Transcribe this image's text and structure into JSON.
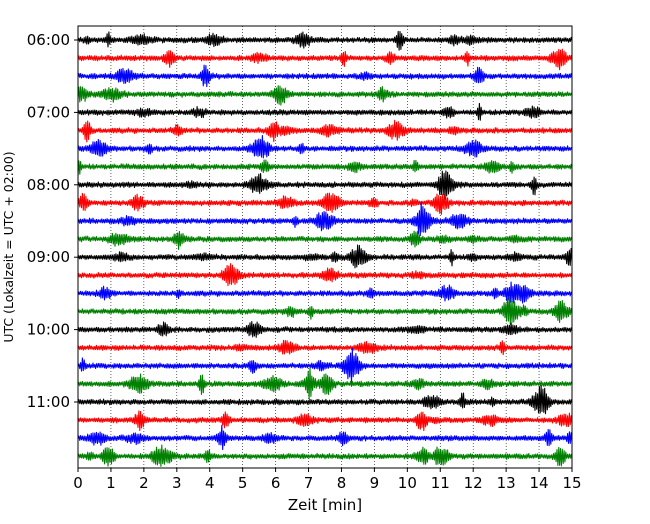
{
  "chart_data": {
    "type": "line",
    "title": "",
    "xlabel": "Zeit  [min]",
    "ylabel": "UTC (Lokalzeit = UTC + 02:00)",
    "xlim": [
      0,
      15
    ],
    "x_ticks": [
      0,
      1,
      2,
      3,
      4,
      5,
      6,
      7,
      8,
      9,
      10,
      11,
      12,
      13,
      14,
      15
    ],
    "x_tick_labels": [
      "0",
      "1",
      "2",
      "3",
      "4",
      "5",
      "6",
      "7",
      "8",
      "9",
      "10",
      "11",
      "12",
      "13",
      "14",
      "15"
    ],
    "y_tick_labels": [
      "06:00",
      "07:00",
      "08:00",
      "09:00",
      "10:00",
      "11:00"
    ],
    "trace_minutes_per_row": 15,
    "grid": "vertical dotted lines at each minute",
    "color_cycle": [
      "#000000",
      "#ff0000",
      "#0000ff",
      "#008000"
    ],
    "series": [
      {
        "start": "06:00",
        "color": "#000000"
      },
      {
        "start": "06:15",
        "color": "#ff0000"
      },
      {
        "start": "06:30",
        "color": "#0000ff"
      },
      {
        "start": "06:45",
        "color": "#008000"
      },
      {
        "start": "07:00",
        "color": "#000000"
      },
      {
        "start": "07:15",
        "color": "#ff0000"
      },
      {
        "start": "07:30",
        "color": "#0000ff"
      },
      {
        "start": "07:45",
        "color": "#008000"
      },
      {
        "start": "08:00",
        "color": "#000000"
      },
      {
        "start": "08:15",
        "color": "#ff0000"
      },
      {
        "start": "08:30",
        "color": "#0000ff"
      },
      {
        "start": "08:45",
        "color": "#008000"
      },
      {
        "start": "09:00",
        "color": "#000000"
      },
      {
        "start": "09:15",
        "color": "#ff0000"
      },
      {
        "start": "09:30",
        "color": "#0000ff"
      },
      {
        "start": "09:45",
        "color": "#008000"
      },
      {
        "start": "10:00",
        "color": "#000000"
      },
      {
        "start": "10:15",
        "color": "#ff0000"
      },
      {
        "start": "10:30",
        "color": "#0000ff"
      },
      {
        "start": "10:45",
        "color": "#008000"
      },
      {
        "start": "11:00",
        "color": "#000000"
      },
      {
        "start": "11:15",
        "color": "#ff0000"
      },
      {
        "start": "11:30",
        "color": "#0000ff"
      },
      {
        "start": "11:45",
        "color": "#008000"
      }
    ]
  }
}
